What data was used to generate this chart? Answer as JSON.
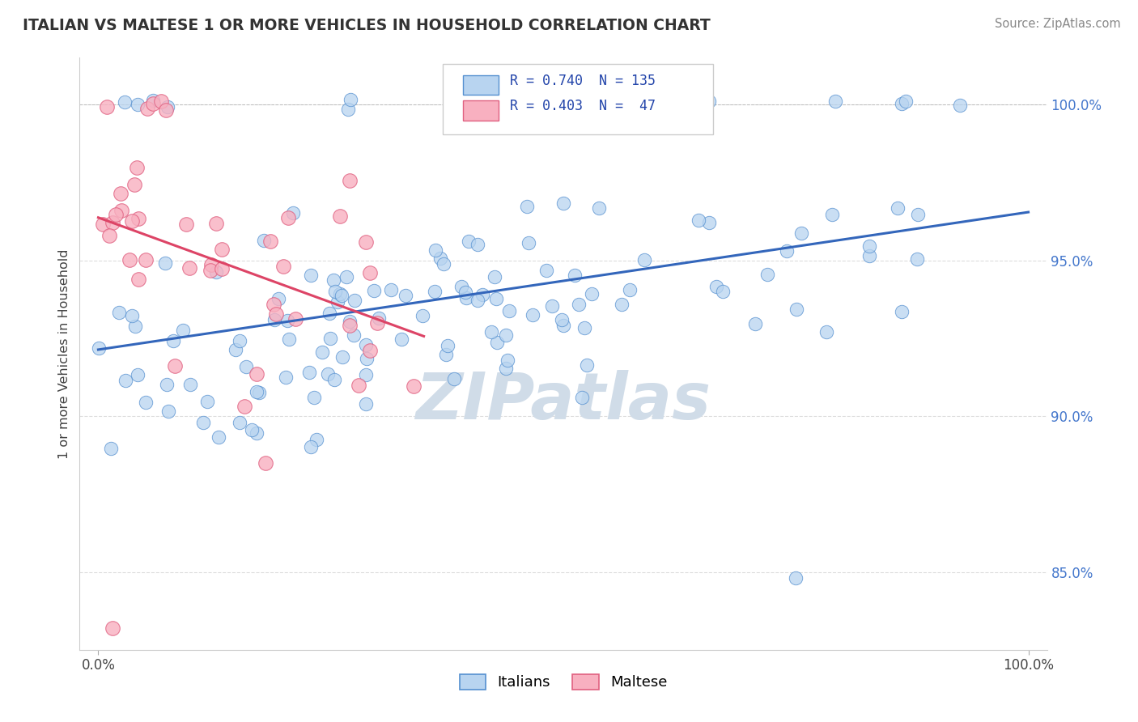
{
  "title": "ITALIAN VS MALTESE 1 OR MORE VEHICLES IN HOUSEHOLD CORRELATION CHART",
  "source": "Source: ZipAtlas.com",
  "ylabel": "1 or more Vehicles in Household",
  "ytick_values": [
    85.0,
    90.0,
    95.0,
    100.0
  ],
  "legend_labels": [
    "Italians",
    "Maltese"
  ],
  "legend_r": [
    0.74,
    0.403
  ],
  "legend_n": [
    135,
    47
  ],
  "italian_fill": "#b8d4f0",
  "italian_edge": "#5590d0",
  "maltese_fill": "#f8b0c0",
  "maltese_edge": "#e06080",
  "italian_line_color": "#3366bb",
  "maltese_line_color": "#dd4466",
  "background_color": "#ffffff",
  "watermark_color": "#d0dce8",
  "xlim": [
    -2,
    102
  ],
  "ylim": [
    82.5,
    101.5
  ],
  "grid_color": "#dddddd",
  "grid_style": "--",
  "top_dash_color": "#bbbbbb"
}
